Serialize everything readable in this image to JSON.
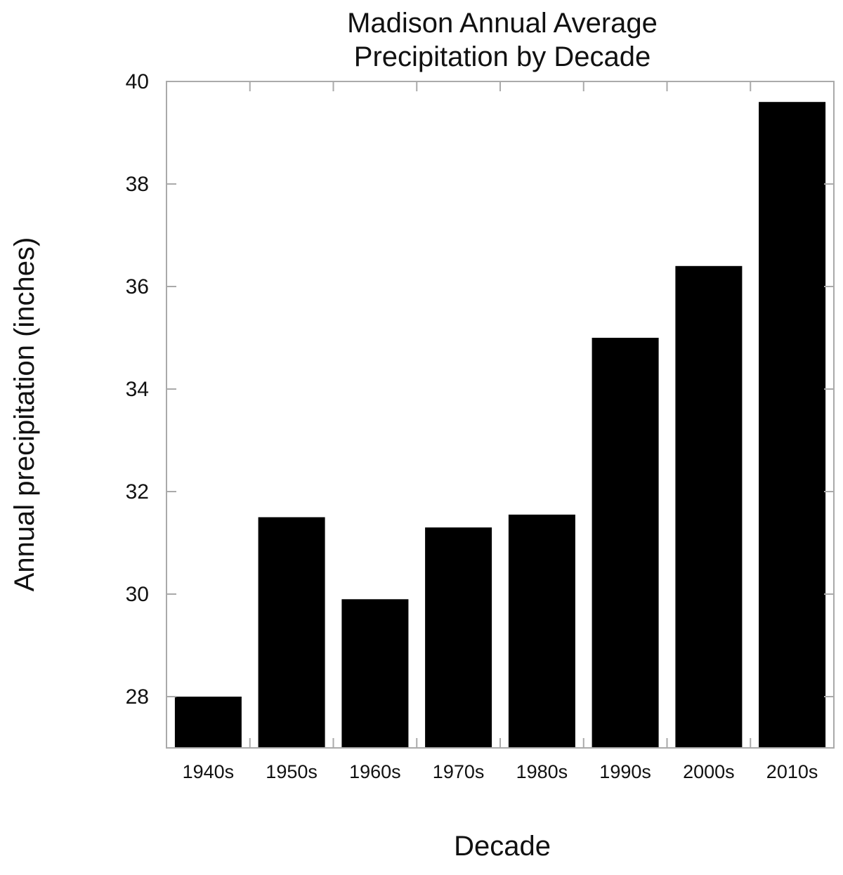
{
  "chart_data": {
    "type": "bar",
    "title": "Madison Annual Average Precipitation by Decade",
    "title_lines": [
      "Madison Annual Average",
      "Precipitation by Decade"
    ],
    "xlabel": "Decade",
    "ylabel": "Annual precipitation (inches)",
    "categories": [
      "1940s",
      "1950s",
      "1960s",
      "1970s",
      "1980s",
      "1990s",
      "2000s",
      "2010s"
    ],
    "values": [
      28.0,
      31.5,
      29.9,
      31.3,
      31.55,
      35.0,
      36.4,
      39.6
    ],
    "ylim": [
      27,
      40
    ],
    "yticks": [
      28,
      30,
      32,
      34,
      36,
      38,
      40
    ],
    "grid": false,
    "legend": null,
    "colors": {
      "bar": "#000000",
      "frame": "#aaaaaa"
    }
  }
}
